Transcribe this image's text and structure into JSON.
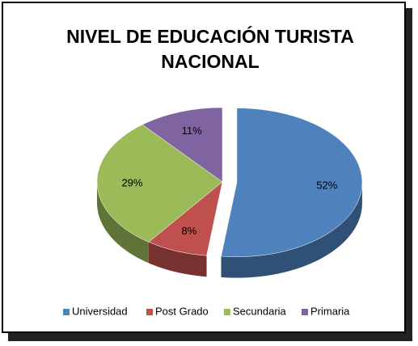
{
  "chart_data": {
    "type": "pie3d",
    "title": "NIVEL DE EDUCACIÓN TURISTA NACIONAL",
    "categories": [
      "Universidad",
      "Post Grado",
      "Secundaria",
      "Primaria"
    ],
    "values": [
      52,
      8,
      29,
      11
    ],
    "value_labels": [
      "52%",
      "8%",
      "29%",
      "11%"
    ],
    "colors": [
      "#4f81bd",
      "#c0504d",
      "#9bbb59",
      "#8064a2"
    ],
    "legend": "bottom"
  }
}
